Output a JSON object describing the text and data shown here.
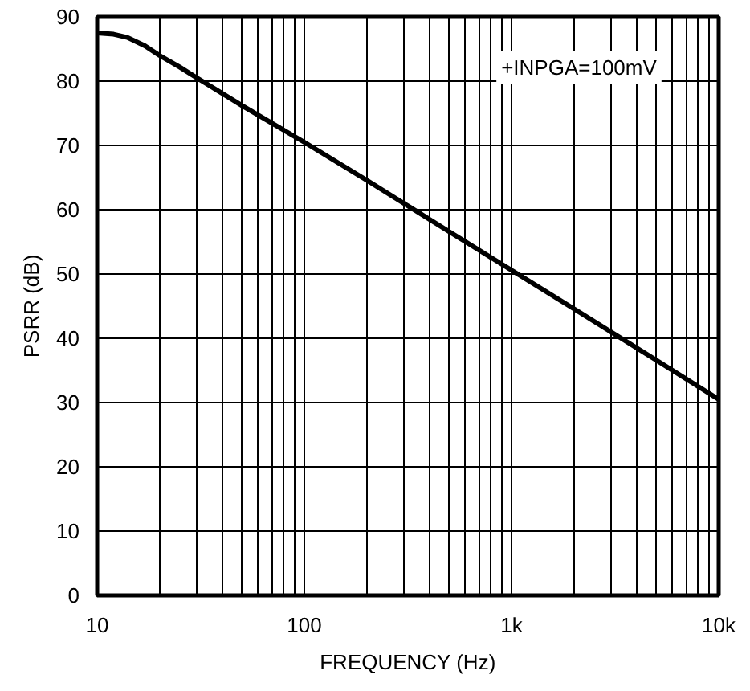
{
  "chart_data": {
    "type": "line",
    "xlabel": "FREQUENCY (Hz)",
    "ylabel": "PSRR (dB)",
    "annotations": [
      "+INPGA=100mV"
    ],
    "x": [
      10,
      12,
      14,
      17,
      20,
      25,
      30,
      50,
      100,
      200,
      500,
      1000,
      2000,
      5000,
      10000
    ],
    "series": [
      {
        "color": "#000000",
        "values": [
          87.5,
          87.3,
          86.8,
          85.5,
          84,
          82.2,
          80.6,
          76.2,
          70.5,
          64.6,
          56.6,
          50.6,
          44.6,
          36.6,
          30.5
        ]
      }
    ],
    "log": "x",
    "grid": true,
    "line_style": "solid",
    "marker": "none",
    "xlim": [
      10,
      10000
    ],
    "ylim": [
      0,
      90
    ],
    "xticks": [
      {
        "value": 10,
        "label": "10"
      },
      {
        "value": 20,
        "label": null
      },
      {
        "value": 30,
        "label": null
      },
      {
        "value": 40,
        "label": null
      },
      {
        "value": 50,
        "label": null
      },
      {
        "value": 60,
        "label": null
      },
      {
        "value": 70,
        "label": null
      },
      {
        "value": 80,
        "label": null
      },
      {
        "value": 90,
        "label": null
      },
      {
        "value": 100,
        "label": "100"
      },
      {
        "value": 200,
        "label": null
      },
      {
        "value": 300,
        "label": null
      },
      {
        "value": 400,
        "label": null
      },
      {
        "value": 500,
        "label": null
      },
      {
        "value": 600,
        "label": null
      },
      {
        "value": 700,
        "label": null
      },
      {
        "value": 800,
        "label": null
      },
      {
        "value": 900,
        "label": null
      },
      {
        "value": 1000,
        "label": "1k"
      },
      {
        "value": 2000,
        "label": null
      },
      {
        "value": 3000,
        "label": null
      },
      {
        "value": 4000,
        "label": null
      },
      {
        "value": 5000,
        "label": null
      },
      {
        "value": 6000,
        "label": null
      },
      {
        "value": 7000,
        "label": null
      },
      {
        "value": 8000,
        "label": null
      },
      {
        "value": 9000,
        "label": null
      },
      {
        "value": 10000,
        "label": "10k"
      }
    ],
    "yticks": [
      0,
      10,
      20,
      30,
      40,
      50,
      60,
      70,
      80,
      90
    ]
  }
}
